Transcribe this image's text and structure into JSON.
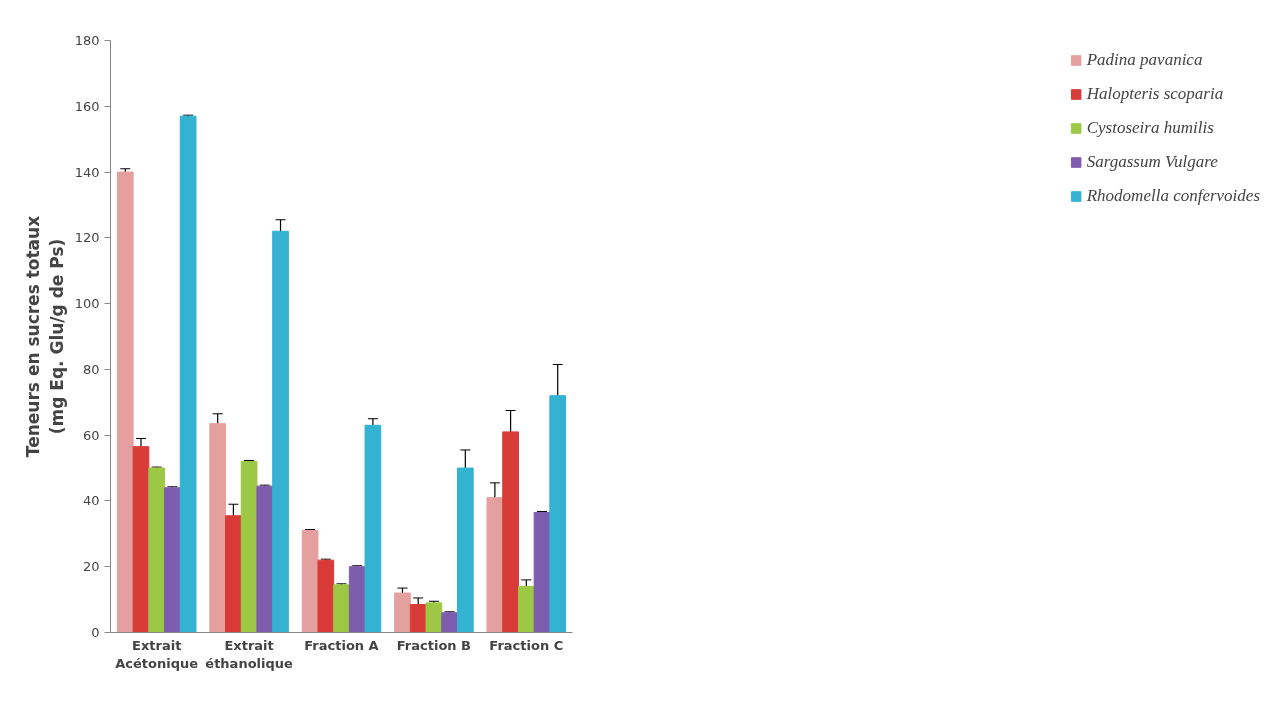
{
  "chart_data": {
    "type": "bar",
    "ylabel": "Teneurs en sucres totaux (mg Eq. Glu/g de Ps)",
    "categories": [
      "Extrait Acétonique",
      "Extrait éthanolique",
      "Fraction A",
      "Fraction B",
      "Fraction C"
    ],
    "series": [
      {
        "name": "Padina pavanica",
        "color": "#e4a09e",
        "values": [
          140,
          63.5,
          31,
          12,
          41
        ],
        "errors": [
          1,
          3,
          0.3,
          1.5,
          4.5
        ]
      },
      {
        "name": "Halopteris scoparia",
        "color": "#d83b38",
        "values": [
          56.5,
          35.5,
          22,
          8.5,
          61
        ],
        "errors": [
          2.5,
          3.5,
          0.3,
          2,
          6.5
        ]
      },
      {
        "name": "Cystoseira humilis",
        "color": "#9cc845",
        "values": [
          50,
          52,
          14.5,
          9,
          14
        ],
        "errors": [
          0.3,
          0.3,
          0.3,
          0.5,
          2
        ]
      },
      {
        "name": "Sargassum Vulgare",
        "color": "#7e5cae",
        "values": [
          44,
          44.5,
          20,
          6,
          36.5
        ],
        "errors": [
          0.3,
          0.3,
          0.3,
          0.3,
          0.3
        ]
      },
      {
        "name": "Rhodomella confervoides",
        "color": "#34b2d2",
        "values": [
          157,
          122,
          63,
          50,
          72
        ],
        "errors": [
          0.3,
          3.5,
          2,
          5.5,
          9.5
        ]
      }
    ],
    "ylim": [
      0,
      180
    ],
    "yticks": [
      0,
      20,
      40,
      60,
      80,
      100,
      120,
      140,
      160,
      180
    ],
    "grid": false,
    "legend": "right"
  }
}
